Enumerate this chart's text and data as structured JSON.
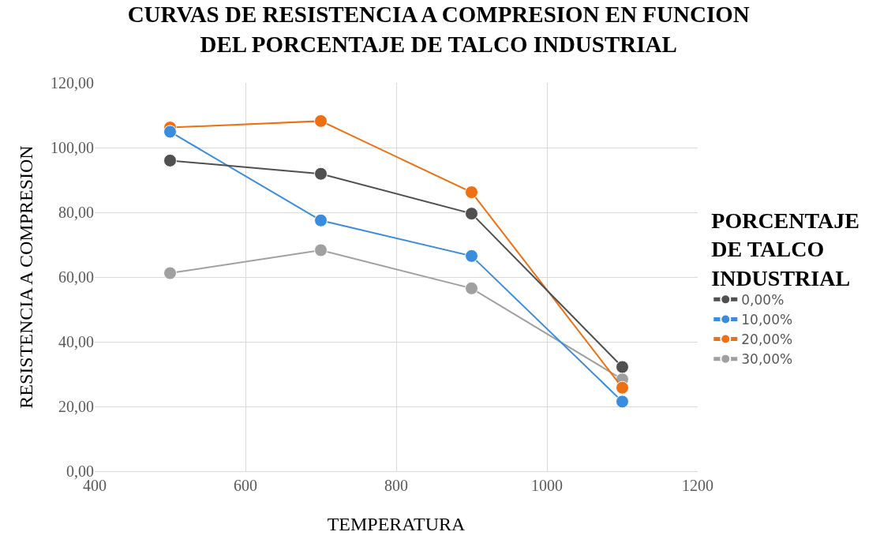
{
  "chart_data": {
    "type": "line",
    "title": "CURVAS DE RESISTENCIA A COMPRESION EN FUNCION DEL PORCENTAJE DE TALCO INDUSTRIAL",
    "xlabel": "TEMPERATURA",
    "ylabel": "RESISTENCIA A COMPRESION",
    "legend_title": "PORCENTAJE DE TALCO INDUSTRIAL",
    "x": [
      500,
      700,
      900,
      1100
    ],
    "series": [
      {
        "name": "0,00%",
        "color": "#505050",
        "values": [
          96.0,
          91.9,
          79.6,
          32.2
        ]
      },
      {
        "name": "10,00%",
        "color": "#3a8dde",
        "values": [
          104.9,
          77.5,
          66.5,
          21.5
        ]
      },
      {
        "name": "20,00%",
        "color": "#ee7012",
        "values": [
          106.2,
          108.2,
          86.2,
          25.8
        ]
      },
      {
        "name": "30,00%",
        "color": "#a0a0a0",
        "values": [
          61.2,
          68.3,
          56.5,
          28.4
        ]
      }
    ],
    "xlim": [
      400,
      1200
    ],
    "xticks": [
      400,
      600,
      800,
      1000,
      1200
    ],
    "ylim": [
      0,
      120
    ],
    "yticks": [
      {
        "value": 0,
        "label": "0,00"
      },
      {
        "value": 20,
        "label": "20,00"
      },
      {
        "value": 40,
        "label": "40,00"
      },
      {
        "value": 60,
        "label": "60,00"
      },
      {
        "value": 80,
        "label": "80,00"
      },
      {
        "value": 100,
        "label": "100,00"
      },
      {
        "value": 120,
        "label": "120,00"
      }
    ],
    "grid": true,
    "legend": "right",
    "marker": "circle",
    "line_style": "solid"
  }
}
